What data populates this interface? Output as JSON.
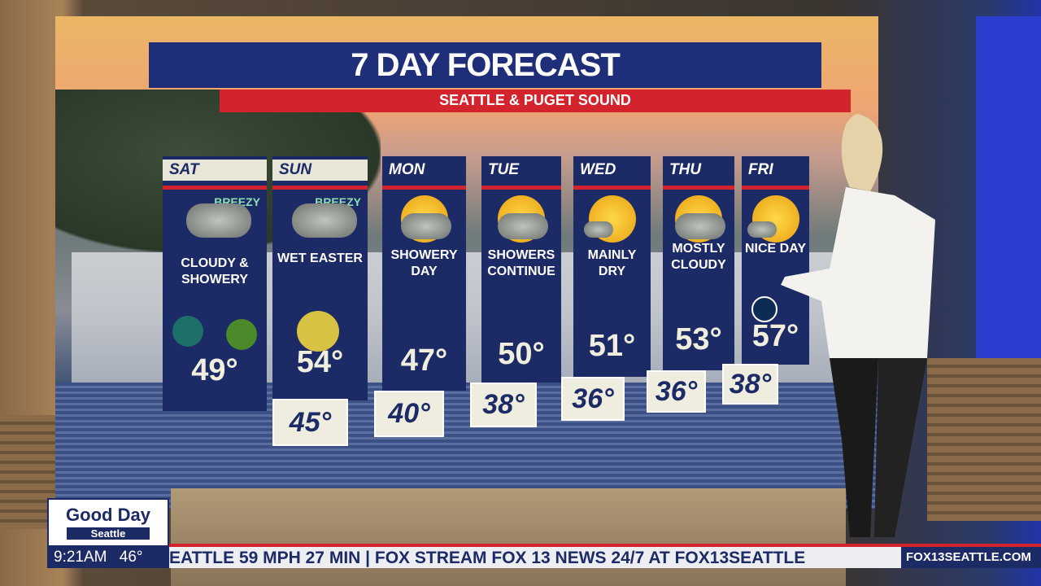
{
  "graphic": {
    "title": "7 DAY FORECAST",
    "subtitle": "SEATTLE & PUGET SOUND"
  },
  "days": [
    {
      "day": "SAT",
      "condition": "CLOUDY & SHOWERY",
      "high": "49°",
      "low": null,
      "badge": "BREEZY",
      "icon": "cloud-rain-icon"
    },
    {
      "day": "SUN",
      "condition": "WET EASTER",
      "high": "54°",
      "low": "45°",
      "badge": "BREEZY",
      "icon": "cloud-rain-icon"
    },
    {
      "day": "MON",
      "condition": "SHOWERY DAY",
      "high": "47°",
      "low": "40°",
      "icon": "sun-cloud-rain-icon"
    },
    {
      "day": "TUE",
      "condition": "SHOWERS CONTINUE",
      "high": "50°",
      "low": "38°",
      "icon": "sun-cloud-rain-icon"
    },
    {
      "day": "WED",
      "condition": "MAINLY DRY",
      "high": "51°",
      "low": "36°",
      "icon": "sun-small-cloud-icon"
    },
    {
      "day": "THU",
      "condition": "MOSTLY CLOUDY",
      "high": "53°",
      "low": "36°",
      "icon": "sun-cloud-icon"
    },
    {
      "day": "FRI",
      "condition": "NICE DAY",
      "high": "57°",
      "low": "38°",
      "icon": "sun-small-cloud-icon"
    }
  ],
  "lower_third": {
    "show_line1": "Good Day",
    "show_line2": "Seattle",
    "time": "9:21AM",
    "temp": "46°",
    "ticker": "EATTLE 59 MPH 27 MIN  |   FOX    STREAM FOX 13 NEWS 24/7 AT FOX13SEATTLE",
    "website": "FOX13SEATTLE.COM"
  },
  "colors": {
    "navy": "#1c2a66",
    "red": "#d3232c",
    "cream": "#efeddf"
  }
}
